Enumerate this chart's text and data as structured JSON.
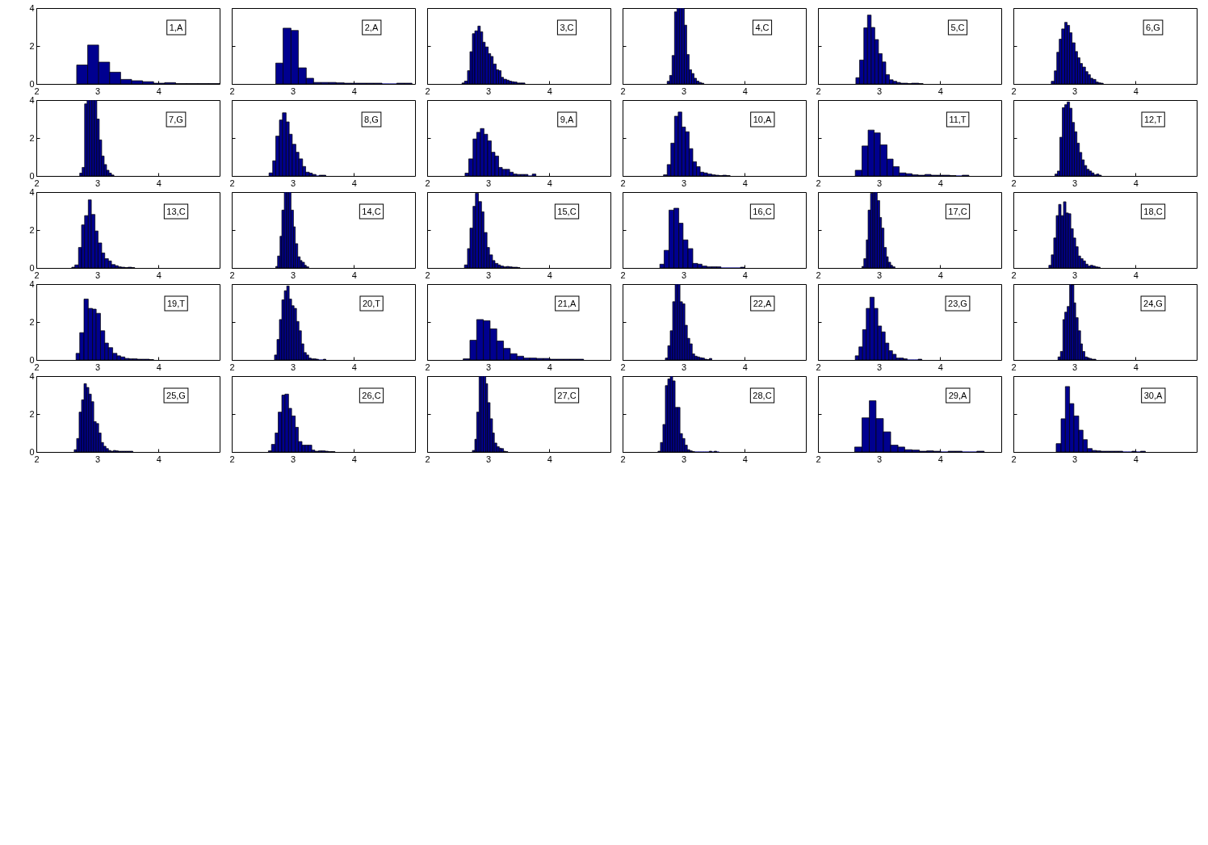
{
  "chart_data": [
    {
      "type": "histogram",
      "bins": [
        2.66,
        2.84,
        3.02,
        3.2,
        3.38,
        3.56,
        3.74,
        3.92,
        4.1,
        4.28,
        4.46,
        4.64,
        4.82,
        5.0
      ],
      "values": [
        1.0,
        2.05,
        1.15,
        0.62,
        0.24,
        0.17,
        0.12,
        0.04,
        0.07,
        0.02,
        0.02,
        0.02,
        0.02
      ],
      "color": "#00008f",
      "xlim": [
        2,
        5
      ],
      "ylim": [
        0,
        4
      ],
      "xticks": [
        2,
        3,
        4
      ],
      "yticks": [
        0,
        2,
        4
      ],
      "annotations": [
        "1,A"
      ]
    },
    {
      "type": "histogram",
      "bins": [
        2.72,
        2.84,
        2.97,
        3.09,
        3.22,
        3.34,
        3.46,
        3.59,
        3.71,
        3.84,
        3.96,
        4.08,
        4.21,
        4.33,
        4.46,
        4.58,
        4.7,
        4.83,
        4.95
      ],
      "values": [
        1.1,
        2.94,
        2.82,
        0.85,
        0.3,
        0.08,
        0.08,
        0.08,
        0.06,
        0.04,
        0.04,
        0.04,
        0.04,
        0.04,
        0,
        0,
        0.04,
        0.04
      ],
      "color": "#00008f",
      "xlim": [
        2,
        5
      ],
      "ylim": [
        0,
        4
      ],
      "xticks": [
        2,
        3,
        4
      ],
      "yticks": [
        0,
        2,
        4
      ],
      "annotations": [
        "2,A"
      ],
      "tick_labels": "x"
    },
    {
      "type": "histogram",
      "bins": [
        2.57,
        2.61,
        2.66,
        2.7,
        2.74,
        2.78,
        2.83,
        2.87,
        2.91,
        2.95,
        3.0,
        3.04,
        3.08,
        3.13,
        3.17,
        3.21,
        3.25,
        3.3,
        3.34,
        3.38,
        3.42,
        3.47,
        3.51,
        3.55,
        3.6
      ],
      "values": [
        0.05,
        0.15,
        0.7,
        1.7,
        2.65,
        2.8,
        3.05,
        2.75,
        2.2,
        1.95,
        1.6,
        1.45,
        1.05,
        0.75,
        0.7,
        0.35,
        0.25,
        0.2,
        0.15,
        0.12,
        0.1,
        0.05,
        0.05,
        0.05
      ],
      "color": "#00008f",
      "xlim": [
        2,
        5
      ],
      "ylim": [
        0,
        4
      ],
      "xticks": [
        2,
        3,
        4
      ],
      "yticks": [
        0,
        2,
        4
      ],
      "annotations": [
        "3,C"
      ],
      "tick_labels": "x"
    },
    {
      "type": "histogram",
      "bins": [
        2.73,
        2.77,
        2.81,
        2.85,
        2.89,
        2.93,
        2.97,
        3.01,
        3.05,
        3.09,
        3.13,
        3.17,
        3.21,
        3.25,
        3.29,
        3.33
      ],
      "values": [
        0.14,
        0.45,
        1.5,
        3.8,
        4,
        4,
        4,
        3.1,
        1.55,
        0.75,
        0.55,
        0.3,
        0.15,
        0.08,
        0.04
      ],
      "color": "#00008f",
      "xlim": [
        2,
        5
      ],
      "ylim": [
        0,
        4
      ],
      "xticks": [
        2,
        3,
        4
      ],
      "yticks": [
        0,
        2,
        4
      ],
      "annotations": [
        "4,C"
      ],
      "tick_labels": "x"
    },
    {
      "type": "histogram",
      "bins": [
        2.62,
        2.68,
        2.75,
        2.81,
        2.87,
        2.93,
        2.99,
        3.05,
        3.11,
        3.17,
        3.23,
        3.29,
        3.35,
        3.41,
        3.47,
        3.53,
        3.59,
        3.65,
        3.72
      ],
      "values": [
        0.33,
        1.26,
        2.96,
        3.63,
        2.98,
        2.34,
        1.6,
        1.16,
        0.49,
        0.22,
        0.14,
        0.08,
        0.04,
        0.04,
        0.02,
        0.04,
        0.04,
        0.02
      ],
      "color": "#00008f",
      "xlim": [
        2,
        5
      ],
      "ylim": [
        0,
        4
      ],
      "xticks": [
        2,
        3,
        4
      ],
      "yticks": [
        0,
        2,
        4
      ],
      "annotations": [
        "5,C"
      ],
      "tick_labels": "x"
    },
    {
      "type": "histogram",
      "bins": [
        2.62,
        2.67,
        2.71,
        2.75,
        2.79,
        2.84,
        2.88,
        2.92,
        2.96,
        3.01,
        3.05,
        3.09,
        3.13,
        3.18,
        3.22,
        3.26,
        3.3,
        3.35,
        3.39,
        3.43,
        3.47
      ],
      "values": [
        0.14,
        0.69,
        1.67,
        2.36,
        2.9,
        3.25,
        3.09,
        2.7,
        2.17,
        1.71,
        1.38,
        1.08,
        0.89,
        0.65,
        0.49,
        0.3,
        0.24,
        0.1,
        0.06,
        0.04
      ],
      "color": "#00008f",
      "xlim": [
        2,
        5
      ],
      "ylim": [
        0,
        4
      ],
      "xticks": [
        2,
        3,
        4
      ],
      "yticks": [
        0,
        2,
        4
      ],
      "annotations": [
        "6,G"
      ],
      "tick_labels": "x"
    },
    {
      "type": "histogram",
      "bins": [
        2.71,
        2.75,
        2.79,
        2.83,
        2.87,
        2.91,
        2.95,
        2.99,
        3.03,
        3.07,
        3.11,
        3.15,
        3.19,
        3.23,
        3.27
      ],
      "values": [
        0.15,
        0.45,
        3.8,
        4,
        4,
        4,
        4,
        3.0,
        1.9,
        1.05,
        0.6,
        0.3,
        0.15,
        0.05
      ],
      "color": "#00008f",
      "xlim": [
        2,
        5
      ],
      "ylim": [
        0,
        4
      ],
      "xticks": [
        2,
        3,
        4
      ],
      "yticks": [
        0,
        2,
        4
      ],
      "annotations": [
        "7,G"
      ]
    },
    {
      "type": "histogram",
      "bins": [
        2.61,
        2.67,
        2.72,
        2.78,
        2.83,
        2.89,
        2.94,
        2.99,
        3.05,
        3.1,
        3.16,
        3.21,
        3.27,
        3.32,
        3.38,
        3.43,
        3.48,
        3.54
      ],
      "values": [
        0.16,
        0.8,
        2.1,
        2.95,
        3.33,
        2.85,
        2.2,
        1.67,
        1.25,
        0.9,
        0.5,
        0.2,
        0.15,
        0.08,
        0,
        0.04,
        0.04
      ],
      "color": "#00008f",
      "xlim": [
        2,
        5
      ],
      "ylim": [
        0,
        4
      ],
      "xticks": [
        2,
        3,
        4
      ],
      "yticks": [
        0,
        2,
        4
      ],
      "annotations": [
        "8,G"
      ],
      "tick_labels": "x"
    },
    {
      "type": "histogram",
      "bins": [
        2.62,
        2.68,
        2.75,
        2.81,
        2.87,
        2.93,
        2.99,
        3.05,
        3.11,
        3.17,
        3.23,
        3.29,
        3.35,
        3.41,
        3.47,
        3.53,
        3.59,
        3.65,
        3.72,
        3.78
      ],
      "values": [
        0.15,
        0.9,
        1.95,
        2.3,
        2.5,
        2.2,
        1.85,
        1.25,
        1.05,
        0.45,
        0.35,
        0.35,
        0.2,
        0.1,
        0.08,
        0.08,
        0.08,
        0,
        0.1
      ],
      "color": "#00008f",
      "xlim": [
        2,
        5
      ],
      "ylim": [
        0,
        4
      ],
      "xticks": [
        2,
        3,
        4
      ],
      "yticks": [
        0,
        2,
        4
      ],
      "annotations": [
        "9,A"
      ],
      "tick_labels": "x"
    },
    {
      "type": "histogram",
      "bins": [
        2.67,
        2.73,
        2.79,
        2.85,
        2.91,
        2.97,
        3.03,
        3.09,
        3.15,
        3.21,
        3.27,
        3.33,
        3.39,
        3.46,
        3.52,
        3.58,
        3.64,
        3.7,
        3.76
      ],
      "values": [
        0.06,
        0.6,
        1.73,
        3.15,
        3.37,
        2.58,
        2.33,
        1.44,
        0.75,
        0.49,
        0.2,
        0.16,
        0.1,
        0.06,
        0.04,
        0.02,
        0.04,
        0.02
      ],
      "color": "#00008f",
      "xlim": [
        2,
        5
      ],
      "ylim": [
        0,
        4
      ],
      "xticks": [
        2,
        3,
        4
      ],
      "yticks": [
        0,
        2,
        4
      ],
      "annotations": [
        "10,A"
      ],
      "tick_labels": "x"
    },
    {
      "type": "histogram",
      "bins": [
        2.61,
        2.72,
        2.82,
        2.92,
        3.02,
        3.13,
        3.23,
        3.33,
        3.44,
        3.54,
        3.64,
        3.75,
        3.85,
        3.95,
        4.05,
        4.16,
        4.26,
        4.36,
        4.47
      ],
      "values": [
        0.3,
        1.58,
        2.42,
        2.27,
        1.64,
        0.89,
        0.49,
        0.16,
        0.12,
        0.06,
        0.04,
        0.08,
        0.04,
        0.04,
        0.04,
        0.02,
        0,
        0.04
      ],
      "color": "#00008f",
      "xlim": [
        2,
        5
      ],
      "ylim": [
        0,
        4
      ],
      "xticks": [
        2,
        3,
        4
      ],
      "yticks": [
        0,
        2,
        4
      ],
      "annotations": [
        "11,T"
      ],
      "tick_labels": "x"
    },
    {
      "type": "histogram",
      "bins": [
        2.68,
        2.72,
        2.76,
        2.8,
        2.84,
        2.88,
        2.92,
        2.96,
        3.0,
        3.04,
        3.08,
        3.12,
        3.16,
        3.2,
        3.24,
        3.28,
        3.32,
        3.36,
        3.4,
        3.44
      ],
      "values": [
        0.1,
        0.26,
        2.04,
        3.6,
        3.76,
        3.9,
        3.57,
        2.82,
        2.33,
        1.73,
        1.24,
        0.85,
        0.55,
        0.35,
        0.26,
        0.16,
        0.06,
        0.1,
        0.04
      ],
      "color": "#00008f",
      "xlim": [
        2,
        5
      ],
      "ylim": [
        0,
        4
      ],
      "xticks": [
        2,
        3,
        4
      ],
      "yticks": [
        0,
        2,
        4
      ],
      "annotations": [
        "12,T"
      ],
      "tick_labels": "x"
    },
    {
      "type": "histogram",
      "bins": [
        2.58,
        2.63,
        2.69,
        2.74,
        2.79,
        2.85,
        2.9,
        2.96,
        3.01,
        3.07,
        3.12,
        3.18,
        3.23,
        3.29,
        3.34,
        3.39,
        3.45,
        3.5,
        3.56,
        3.61
      ],
      "values": [
        0.04,
        0.16,
        1.08,
        2.27,
        2.76,
        3.59,
        2.82,
        1.95,
        1.32,
        0.79,
        0.49,
        0.37,
        0.18,
        0.12,
        0.06,
        0.04,
        0.02,
        0.04,
        0.02
      ],
      "color": "#00008f",
      "xlim": [
        2,
        5
      ],
      "ylim": [
        0,
        4
      ],
      "xticks": [
        2,
        3,
        4
      ],
      "yticks": [
        0,
        2,
        4
      ],
      "annotations": [
        "13,C"
      ]
    },
    {
      "type": "histogram",
      "bins": [
        2.72,
        2.75,
        2.79,
        2.82,
        2.86,
        2.9,
        2.93,
        2.97,
        3.01,
        3.04,
        3.08,
        3.12,
        3.15,
        3.19,
        3.22,
        3.26
      ],
      "values": [
        0.08,
        0.63,
        1.67,
        3.05,
        4,
        4,
        4,
        3.05,
        2.17,
        1.28,
        0.59,
        0.39,
        0.3,
        0.14,
        0.06
      ],
      "color": "#00008f",
      "xlim": [
        2,
        5
      ],
      "ylim": [
        0,
        4
      ],
      "xticks": [
        2,
        3,
        4
      ],
      "yticks": [
        0,
        2,
        4
      ],
      "annotations": [
        "14,C"
      ],
      "tick_labels": "x"
    },
    {
      "type": "histogram",
      "bins": [
        2.61,
        2.66,
        2.7,
        2.75,
        2.79,
        2.84,
        2.89,
        2.93,
        2.98,
        3.02,
        3.07,
        3.11,
        3.16,
        3.2,
        3.25,
        3.3,
        3.34,
        3.39,
        3.43,
        3.48,
        3.52
      ],
      "values": [
        0.16,
        1.02,
        2.1,
        3.25,
        3.94,
        3.5,
        2.96,
        1.87,
        1.08,
        0.69,
        0.39,
        0.24,
        0.16,
        0.1,
        0.06,
        0.08,
        0.06,
        0.04,
        0.04,
        0.02
      ],
      "color": "#00008f",
      "xlim": [
        2,
        5
      ],
      "ylim": [
        0,
        4
      ],
      "xticks": [
        2,
        3,
        4
      ],
      "yticks": [
        0,
        2,
        4
      ],
      "annotations": [
        "15,C"
      ],
      "tick_labels": "x"
    },
    {
      "type": "histogram",
      "bins": [
        2.61,
        2.68,
        2.76,
        2.84,
        2.92,
        2.99,
        3.07,
        3.15,
        3.23,
        3.3,
        3.38,
        3.46,
        3.54,
        3.61,
        3.69,
        3.77,
        3.85,
        3.93,
        4.0
      ],
      "values": [
        0.2,
        0.93,
        3.05,
        3.15,
        2.36,
        1.48,
        1.02,
        0.24,
        0.2,
        0.1,
        0.06,
        0.06,
        0.06,
        0,
        0,
        0,
        0,
        0.04
      ],
      "color": "#00008f",
      "xlim": [
        2,
        5
      ],
      "ylim": [
        0,
        4
      ],
      "xticks": [
        2,
        3,
        4
      ],
      "yticks": [
        0,
        2,
        4
      ],
      "annotations": [
        "16,C"
      ],
      "tick_labels": "x"
    },
    {
      "type": "histogram",
      "bins": [
        2.72,
        2.75,
        2.79,
        2.82,
        2.86,
        2.9,
        2.93,
        2.97,
        3.01,
        3.04,
        3.08,
        3.12,
        3.15,
        3.19,
        3.22,
        3.26
      ],
      "values": [
        0.08,
        0.49,
        1.48,
        3.05,
        3.94,
        4,
        4,
        3.55,
        2.66,
        2.1,
        1.08,
        0.59,
        0.3,
        0.14,
        0.06
      ],
      "color": "#00008f",
      "xlim": [
        2,
        5
      ],
      "ylim": [
        0,
        4
      ],
      "xticks": [
        2,
        3,
        4
      ],
      "yticks": [
        0,
        2,
        4
      ],
      "annotations": [
        "17,C"
      ],
      "tick_labels": "x"
    },
    {
      "type": "histogram",
      "bins": [
        2.58,
        2.62,
        2.66,
        2.7,
        2.74,
        2.78,
        2.82,
        2.86,
        2.9,
        2.94,
        2.98,
        3.02,
        3.06,
        3.1,
        3.14,
        3.18,
        3.22,
        3.26,
        3.3,
        3.34,
        3.38,
        3.42
      ],
      "values": [
        0.14,
        0.69,
        1.58,
        2.76,
        3.35,
        2.76,
        3.49,
        2.9,
        2.86,
        2.07,
        1.58,
        1.12,
        0.63,
        0.49,
        0.37,
        0.2,
        0.1,
        0.14,
        0.1,
        0.06,
        0.04
      ],
      "color": "#00008f",
      "xlim": [
        2,
        5
      ],
      "ylim": [
        0,
        4
      ],
      "xticks": [
        2,
        3,
        4
      ],
      "yticks": [
        0,
        2,
        4
      ],
      "annotations": [
        "18,C"
      ],
      "tick_labels": "x"
    },
    {
      "type": "histogram",
      "bins": [
        2.65,
        2.71,
        2.78,
        2.85,
        2.92,
        2.98,
        3.05,
        3.12,
        3.18,
        3.25,
        3.32,
        3.38,
        3.45,
        3.52,
        3.58,
        3.65,
        3.72,
        3.78,
        3.85,
        3.92
      ],
      "values": [
        0.35,
        1.44,
        3.21,
        2.72,
        2.68,
        2.46,
        1.54,
        0.89,
        0.65,
        0.35,
        0.22,
        0.16,
        0.08,
        0.06,
        0.06,
        0.04,
        0.04,
        0.04,
        0.02
      ],
      "color": "#00008f",
      "xlim": [
        2,
        5
      ],
      "ylim": [
        0,
        4
      ],
      "xticks": [
        2,
        3,
        4
      ],
      "yticks": [
        0,
        2,
        4
      ],
      "annotations": [
        "19,T"
      ]
    },
    {
      "type": "histogram",
      "bins": [
        2.7,
        2.74,
        2.78,
        2.82,
        2.86,
        2.9,
        2.94,
        2.98,
        3.02,
        3.06,
        3.1,
        3.14,
        3.18,
        3.22,
        3.26,
        3.3,
        3.34,
        3.38,
        3.42,
        3.46,
        3.5,
        3.54
      ],
      "values": [
        0.26,
        1.08,
        2.13,
        3.17,
        3.65,
        3.9,
        3.21,
        2.86,
        2.72,
        2.03,
        1.54,
        0.85,
        0.39,
        0.26,
        0.1,
        0.06,
        0.06,
        0.04,
        0,
        0,
        0.04
      ],
      "color": "#00008f",
      "xlim": [
        2,
        5
      ],
      "ylim": [
        0,
        4
      ],
      "xticks": [
        2,
        3,
        4
      ],
      "yticks": [
        0,
        2,
        4
      ],
      "annotations": [
        "20,T"
      ],
      "tick_labels": "x"
    },
    {
      "type": "histogram",
      "bins": [
        2.59,
        2.7,
        2.81,
        2.92,
        3.03,
        3.14,
        3.25,
        3.36,
        3.47,
        3.58,
        3.68,
        3.79,
        3.9,
        4.01,
        4.12,
        4.23,
        4.34,
        4.45,
        4.56
      ],
      "values": [
        0.06,
        1.04,
        2.13,
        2.07,
        1.64,
        1.0,
        0.61,
        0.33,
        0.2,
        0.1,
        0.1,
        0.08,
        0.08,
        0.04,
        0.04,
        0.04,
        0.04,
        0.04
      ],
      "color": "#00008f",
      "xlim": [
        2,
        5
      ],
      "ylim": [
        0,
        4
      ],
      "xticks": [
        2,
        3,
        4
      ],
      "yticks": [
        0,
        2,
        4
      ],
      "annotations": [
        "21,A"
      ],
      "tick_labels": "x"
    },
    {
      "type": "histogram",
      "bins": [
        2.7,
        2.74,
        2.78,
        2.82,
        2.86,
        2.9,
        2.94,
        2.98,
        3.02,
        3.06,
        3.1,
        3.14,
        3.18,
        3.22,
        3.26,
        3.3,
        3.34,
        3.38,
        3.42,
        3.46
      ],
      "values": [
        0.1,
        0.75,
        1.54,
        3.07,
        4,
        4,
        3.07,
        2.96,
        1.83,
        1.14,
        0.85,
        0.32,
        0.2,
        0.16,
        0.12,
        0.1,
        0.04,
        0.02,
        0.08
      ],
      "color": "#00008f",
      "xlim": [
        2,
        5
      ],
      "ylim": [
        0,
        4
      ],
      "xticks": [
        2,
        3,
        4
      ],
      "yticks": [
        0,
        2,
        4
      ],
      "annotations": [
        "22,A"
      ],
      "tick_labels": "x"
    },
    {
      "type": "histogram",
      "bins": [
        2.61,
        2.67,
        2.73,
        2.79,
        2.85,
        2.92,
        2.98,
        3.04,
        3.1,
        3.16,
        3.22,
        3.28,
        3.34,
        3.4,
        3.46,
        3.52,
        3.58,
        3.64,
        3.7
      ],
      "values": [
        0.22,
        0.69,
        1.6,
        2.72,
        3.31,
        2.72,
        1.79,
        1.48,
        0.89,
        0.49,
        0.3,
        0.1,
        0.1,
        0.06,
        0,
        0,
        0,
        0.04
      ],
      "color": "#00008f",
      "xlim": [
        2,
        5
      ],
      "ylim": [
        0,
        4
      ],
      "xticks": [
        2,
        3,
        4
      ],
      "yticks": [
        0,
        2,
        4
      ],
      "annotations": [
        "23,G"
      ],
      "tick_labels": "x"
    },
    {
      "type": "histogram",
      "bins": [
        2.73,
        2.77,
        2.81,
        2.84,
        2.88,
        2.92,
        2.95,
        2.99,
        3.02,
        3.06,
        3.1,
        3.13,
        3.17,
        3.21,
        3.24,
        3.28,
        3.32,
        3.35
      ],
      "values": [
        0.16,
        0.45,
        2.13,
        2.52,
        2.82,
        4,
        3.96,
        3.01,
        2.23,
        1.54,
        0.85,
        0.45,
        0.16,
        0.12,
        0.08,
        0.04,
        0.04
      ],
      "color": "#00008f",
      "xlim": [
        2,
        5
      ],
      "ylim": [
        0,
        4
      ],
      "xticks": [
        2,
        3,
        4
      ],
      "yticks": [
        0,
        2,
        4
      ],
      "annotations": [
        "24,G"
      ],
      "tick_labels": "x"
    },
    {
      "type": "histogram",
      "bins": [
        2.62,
        2.66,
        2.7,
        2.74,
        2.78,
        2.82,
        2.86,
        2.9,
        2.94,
        2.98,
        3.02,
        3.06,
        3.1,
        3.14,
        3.18,
        3.22,
        3.26,
        3.3,
        3.34,
        3.38,
        3.42,
        3.46,
        3.5,
        3.54,
        3.58
      ],
      "values": [
        0.12,
        0.71,
        2.1,
        2.75,
        3.6,
        3.4,
        3.05,
        2.65,
        1.6,
        1.5,
        1.0,
        0.5,
        0.3,
        0.18,
        0.08,
        0.04,
        0.08,
        0.06,
        0.04,
        0.04,
        0.04,
        0.04,
        0.04,
        0.04
      ],
      "color": "#00008f",
      "xlim": [
        2,
        5
      ],
      "ylim": [
        0,
        4
      ],
      "xticks": [
        2,
        3,
        4
      ],
      "yticks": [
        0,
        2,
        4
      ],
      "annotations": [
        "25,G"
      ]
    },
    {
      "type": "histogram",
      "bins": [
        2.6,
        2.65,
        2.71,
        2.76,
        2.82,
        2.87,
        2.93,
        2.98,
        3.04,
        3.09,
        3.15,
        3.2,
        3.25,
        3.31,
        3.36,
        3.42,
        3.47,
        3.53,
        3.58,
        3.64,
        3.69
      ],
      "values": [
        0.06,
        0.4,
        1.0,
        2.1,
        3.0,
        3.05,
        2.3,
        1.9,
        1.3,
        0.55,
        0.36,
        0.36,
        0.36,
        0.1,
        0.04,
        0.06,
        0.06,
        0.04,
        0.02,
        0.02
      ],
      "color": "#00008f",
      "xlim": [
        2,
        5
      ],
      "ylim": [
        0,
        4
      ],
      "xticks": [
        2,
        3,
        4
      ],
      "yticks": [
        0,
        2,
        4
      ],
      "annotations": [
        "26,C"
      ],
      "tick_labels": "x"
    },
    {
      "type": "histogram",
      "bins": [
        2.74,
        2.78,
        2.81,
        2.85,
        2.88,
        2.92,
        2.96,
        2.99,
        3.03,
        3.07,
        3.1,
        3.14,
        3.18,
        3.21,
        3.25,
        3.28,
        3.32
      ],
      "values": [
        0.08,
        0.67,
        2.1,
        4,
        4,
        4,
        3.6,
        2.6,
        1.75,
        1.0,
        0.47,
        0.28,
        0.2,
        0.18,
        0.04,
        0.02
      ],
      "color": "#00008f",
      "xlim": [
        2,
        5
      ],
      "ylim": [
        0,
        4
      ],
      "xticks": [
        2,
        3,
        4
      ],
      "yticks": [
        0,
        2,
        4
      ],
      "annotations": [
        "27,C"
      ],
      "tick_labels": "x"
    },
    {
      "type": "histogram",
      "bins": [
        2.58,
        2.62,
        2.66,
        2.7,
        2.74,
        2.78,
        2.82,
        2.86,
        2.9,
        2.94,
        2.98,
        3.02,
        3.06,
        3.1,
        3.14,
        3.18,
        3.22,
        3.26,
        3.3,
        3.34,
        3.38,
        3.42,
        3.46,
        3.5,
        3.54,
        3.58
      ],
      "values": [
        0.04,
        0.5,
        1.45,
        3.5,
        3.85,
        4,
        3.75,
        2.35,
        2.35,
        0.97,
        0.71,
        0.36,
        0.12,
        0.06,
        0.02,
        0,
        0,
        0,
        0,
        0,
        0,
        0.04,
        0,
        0.04,
        0
      ],
      "color": "#00008f",
      "xlim": [
        2,
        5
      ],
      "ylim": [
        0,
        4
      ],
      "xticks": [
        2,
        3,
        4
      ],
      "yticks": [
        0,
        2,
        4
      ],
      "annotations": [
        "28,C"
      ],
      "tick_labels": "x"
    },
    {
      "type": "histogram",
      "bins": [
        2.6,
        2.72,
        2.84,
        2.95,
        3.07,
        3.19,
        3.31,
        3.42,
        3.54,
        3.66,
        3.78,
        3.89,
        4.01,
        4.13,
        4.25,
        4.36,
        4.48,
        4.6,
        4.72
      ],
      "values": [
        0.26,
        1.8,
        2.7,
        1.76,
        1.06,
        0.36,
        0.26,
        0.12,
        0.1,
        0.04,
        0.06,
        0.04,
        0,
        0.04,
        0.04,
        0,
        0,
        0.04
      ],
      "color": "#00008f",
      "xlim": [
        2,
        5
      ],
      "ylim": [
        0,
        4
      ],
      "xticks": [
        2,
        3,
        4
      ],
      "yticks": [
        0,
        2,
        4
      ],
      "annotations": [
        "29,A"
      ],
      "tick_labels": "x"
    },
    {
      "type": "histogram",
      "bins": [
        2.7,
        2.78,
        2.85,
        2.92,
        2.99,
        3.07,
        3.14,
        3.21,
        3.29,
        3.36,
        3.43,
        3.5,
        3.58,
        3.65,
        3.72,
        3.79,
        3.87,
        3.94,
        4.01,
        4.08,
        4.16
      ],
      "values": [
        0.44,
        1.75,
        3.45,
        2.55,
        1.9,
        1.15,
        0.65,
        0.18,
        0.08,
        0.06,
        0.04,
        0.04,
        0.04,
        0.04,
        0.04,
        0,
        0,
        0.04,
        0,
        0.04
      ],
      "color": "#00008f",
      "xlim": [
        2,
        5
      ],
      "ylim": [
        0,
        4
      ],
      "xticks": [
        2,
        3,
        4
      ],
      "yticks": [
        0,
        2,
        4
      ],
      "annotations": [
        "30,A"
      ],
      "tick_labels": "x"
    }
  ]
}
